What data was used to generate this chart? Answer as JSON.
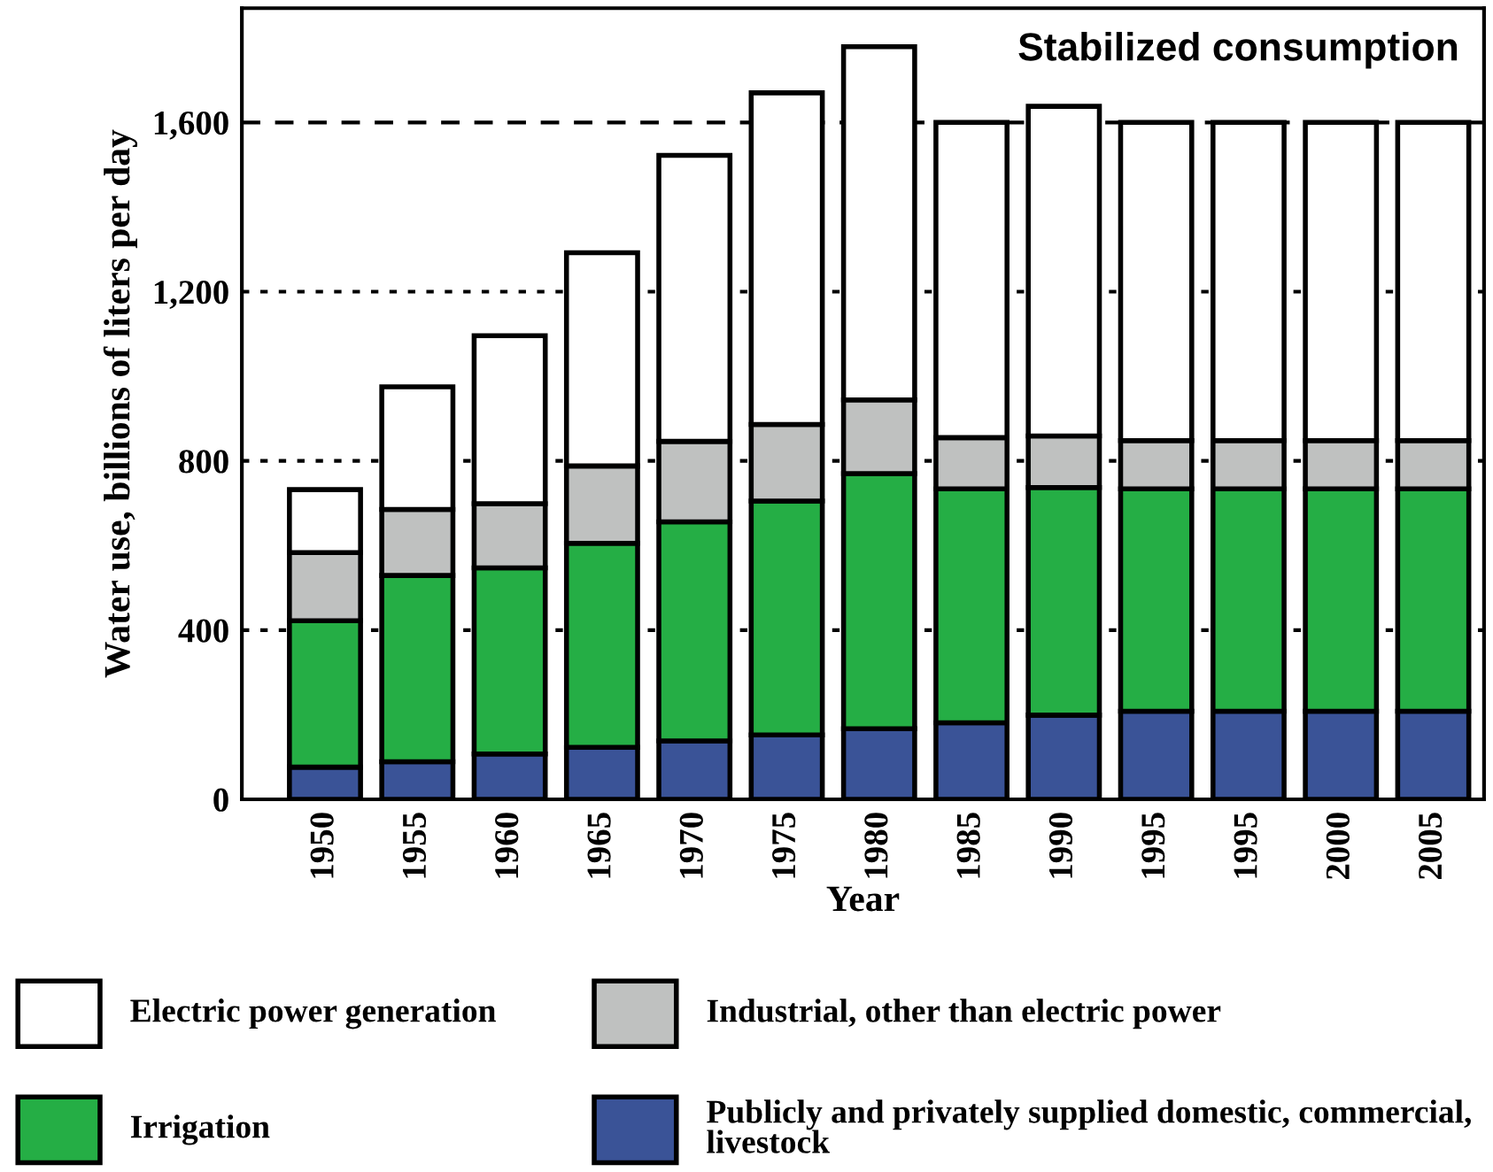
{
  "chart_data": {
    "type": "bar",
    "stacked": true,
    "xlabel": "Year",
    "ylabel": "Water use, billions of liters per day",
    "categories": [
      "1950",
      "1955",
      "1960",
      "1965",
      "1970",
      "1975",
      "1980",
      "1985",
      "1990",
      "1995",
      "1995",
      "2000",
      "2005"
    ],
    "series": [
      {
        "name": "Publicly and privately supplied domestic, commercial, livestock",
        "color": "#3a5397",
        "values": [
          76,
          89,
          107,
          123,
          138,
          152,
          167,
          181,
          199,
          208,
          208,
          208,
          208
        ]
      },
      {
        "name": "Irrigation",
        "color": "#25ae45",
        "values": [
          346,
          440,
          440,
          482,
          518,
          553,
          603,
          553,
          538,
          526,
          526,
          526,
          526
        ]
      },
      {
        "name": "Industrial, other than electric power",
        "color": "#bfc1c0",
        "values": [
          161,
          156,
          152,
          183,
          190,
          181,
          174,
          121,
          122,
          114,
          114,
          114,
          114
        ]
      },
      {
        "name": "Electric power generation",
        "color": "#ffffff",
        "values": [
          149,
          290,
          397,
          504,
          676,
          784,
          835,
          745,
          779,
          752,
          752,
          752,
          752
        ]
      }
    ],
    "ylim": [
      0,
      1870
    ],
    "yticks": [
      0,
      400,
      800,
      {
        "value": 1200,
        "label": "1,200"
      },
      {
        "value": 1600,
        "label": "1,600"
      }
    ],
    "ref_lines": [
      {
        "axis": "y",
        "value": 400,
        "line_style": "dotted",
        "color": "#000000"
      },
      {
        "axis": "y",
        "value": 800,
        "line_style": "dotted",
        "color": "#000000"
      },
      {
        "axis": "y",
        "value": 1200,
        "line_style": "dotted",
        "color": "#000000"
      },
      {
        "axis": "y",
        "value": 1600,
        "line_style": "dashed",
        "color": "#000000"
      }
    ],
    "annotations": [
      "Stabilized consumption"
    ],
    "grid": false,
    "legend": "bottom"
  }
}
